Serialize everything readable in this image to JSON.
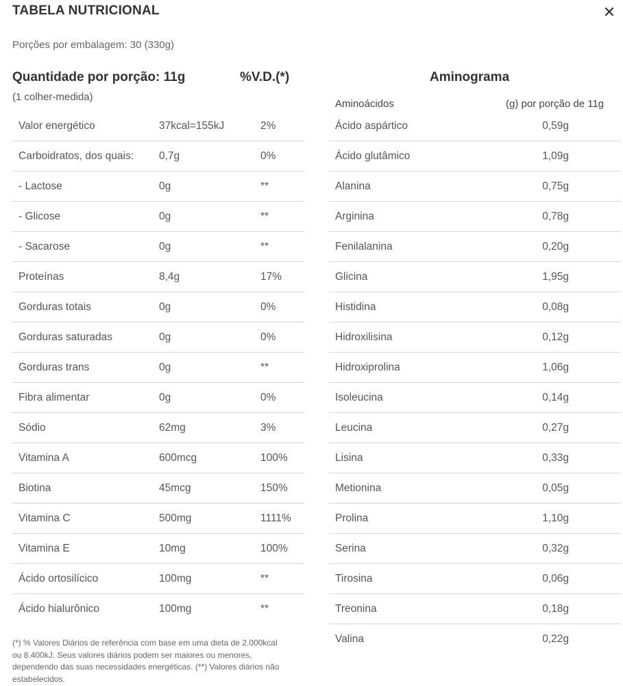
{
  "header": {
    "title": "TABELA NUTRICIONAL",
    "close_symbol": "✕"
  },
  "portions": "Porções por embalagem: 30 (330g)",
  "nutrition": {
    "quantity_label": "Quantidade por porção: 11g",
    "vd_label": "%V.D.(*)",
    "measure": "(1 colher-medida)",
    "rows": [
      {
        "name": "Valor energético",
        "amount": "37kcal=155kJ",
        "vd": "2%"
      },
      {
        "name": "Carboidratos, dos quais:",
        "amount": "0,7g",
        "vd": "0%"
      },
      {
        "name": "- Lactose",
        "amount": "0g",
        "vd": "**"
      },
      {
        "name": "- Glicose",
        "amount": "0g",
        "vd": "**"
      },
      {
        "name": "- Sacarose",
        "amount": "0g",
        "vd": "**"
      },
      {
        "name": "Proteínas",
        "amount": "8,4g",
        "vd": "17%"
      },
      {
        "name": "Gorduras totais",
        "amount": "0g",
        "vd": "0%"
      },
      {
        "name": "Gorduras saturadas",
        "amount": "0g",
        "vd": "0%"
      },
      {
        "name": "Gorduras trans",
        "amount": "0g",
        "vd": "**"
      },
      {
        "name": "Fibra alimentar",
        "amount": "0g",
        "vd": "0%"
      },
      {
        "name": "Sódio",
        "amount": "62mg",
        "vd": "3%"
      },
      {
        "name": "Vitamina A",
        "amount": "600mcg",
        "vd": "100%"
      },
      {
        "name": "Biotina",
        "amount": "45mcg",
        "vd": "150%"
      },
      {
        "name": "Vitamina C",
        "amount": "500mg",
        "vd": "1111%"
      },
      {
        "name": "Vitamina E",
        "amount": "10mg",
        "vd": "100%"
      },
      {
        "name": "Ácido ortosilícico",
        "amount": "100mg",
        "vd": "**"
      },
      {
        "name": "Ácido hialurônico",
        "amount": "100mg",
        "vd": "**"
      }
    ],
    "footnote": "(*) % Valores Diários de referência com base em uma dieta de 2.000kcal ou 8.400kJ. Seus valores diários podem ser maiores ou menores, dependendo das suas necessidades energéticas. (**) Valores diários não estabelecidos."
  },
  "aminogram": {
    "title": "Aminograma",
    "col_name": "Aminoácidos",
    "col_value": "(g) por porção de 11g",
    "rows": [
      {
        "name": "Ácido aspártico",
        "value": "0,59g"
      },
      {
        "name": "Ácido glutâmico",
        "value": "1,09g"
      },
      {
        "name": "Alanina",
        "value": "0,75g"
      },
      {
        "name": "Arginina",
        "value": "0,78g"
      },
      {
        "name": "Fenilalanina",
        "value": "0,20g"
      },
      {
        "name": "Glicina",
        "value": "1,95g"
      },
      {
        "name": "Histidina",
        "value": "0,08g"
      },
      {
        "name": "Hidroxilisina",
        "value": "0,12g"
      },
      {
        "name": "Hidroxiprolina",
        "value": "1,06g"
      },
      {
        "name": "Isoleucina",
        "value": "0,14g"
      },
      {
        "name": "Leucina",
        "value": "0,27g"
      },
      {
        "name": "Lisina",
        "value": "0,33g"
      },
      {
        "name": "Metionina",
        "value": "0,05g"
      },
      {
        "name": "Prolina",
        "value": "1,10g"
      },
      {
        "name": "Serina",
        "value": "0,32g"
      },
      {
        "name": "Tirosina",
        "value": "0,06g"
      },
      {
        "name": "Treonina",
        "value": "0,18g"
      },
      {
        "name": "Valina",
        "value": "0,22g"
      }
    ]
  }
}
